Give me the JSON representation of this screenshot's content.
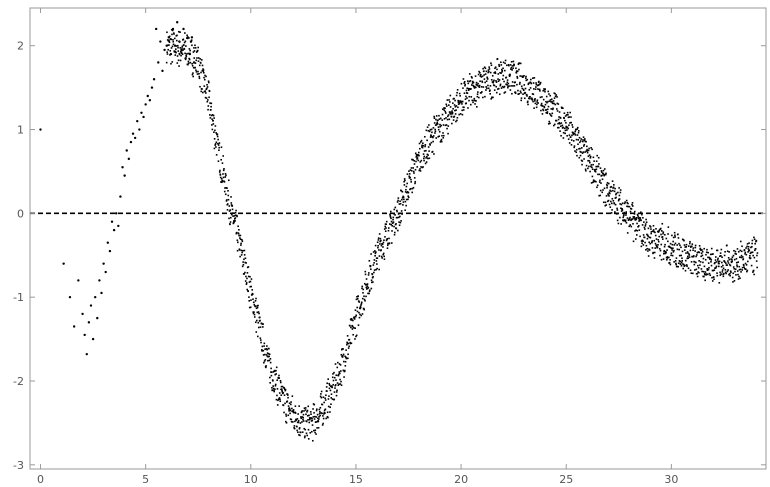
{
  "chart_data": {
    "type": "scatter",
    "title": "",
    "xlabel": "",
    "ylabel": "",
    "xlim": [
      -0.5,
      34.5
    ],
    "ylim": [
      -3.05,
      2.45
    ],
    "x_ticks": [
      0,
      5,
      10,
      15,
      20,
      25,
      30
    ],
    "x_tick_labels": [
      "0",
      "5",
      "10",
      "15",
      "20",
      "25",
      "30"
    ],
    "y_ticks": [
      -3,
      -2,
      -1,
      0,
      1,
      2
    ],
    "y_tick_labels": [
      "-3",
      "-2",
      "-1",
      "0",
      "1",
      "2"
    ],
    "grid": false,
    "legend": "none",
    "reference_line": {
      "y": 0,
      "style": "dashed"
    },
    "point_color": "#000000",
    "series": [
      {
        "values": [
          [
            0.0,
            1.0
          ],
          [
            1.1,
            -0.6
          ],
          [
            1.4,
            -1.0
          ],
          [
            1.6,
            -1.35
          ],
          [
            1.8,
            -0.8
          ],
          [
            2.0,
            -1.2
          ],
          [
            2.1,
            -1.45
          ],
          [
            2.2,
            -1.68
          ],
          [
            2.3,
            -1.3
          ],
          [
            2.4,
            -1.1
          ],
          [
            2.5,
            -1.5
          ],
          [
            2.6,
            -1.0
          ],
          [
            2.7,
            -1.25
          ],
          [
            2.8,
            -0.8
          ],
          [
            2.9,
            -0.95
          ],
          [
            3.0,
            -0.6
          ],
          [
            3.1,
            -0.7
          ],
          [
            3.2,
            -0.35
          ],
          [
            3.3,
            -0.45
          ],
          [
            3.4,
            -0.1
          ],
          [
            3.5,
            -0.2
          ],
          [
            3.6,
            0.0
          ],
          [
            3.7,
            -0.15
          ],
          [
            3.8,
            0.2
          ],
          [
            3.9,
            0.55
          ],
          [
            4.0,
            0.45
          ],
          [
            4.1,
            0.75
          ],
          [
            4.2,
            0.65
          ],
          [
            4.3,
            0.85
          ],
          [
            4.4,
            0.95
          ],
          [
            4.5,
            0.9
          ],
          [
            4.6,
            1.1
          ],
          [
            4.7,
            1.0
          ],
          [
            4.8,
            1.2
          ],
          [
            4.9,
            1.15
          ],
          [
            5.0,
            1.3
          ],
          [
            5.1,
            1.4
          ],
          [
            5.2,
            1.35
          ],
          [
            5.3,
            1.5
          ],
          [
            5.4,
            1.6
          ],
          [
            5.5,
            2.2
          ],
          [
            5.6,
            1.8
          ],
          [
            5.7,
            2.05
          ],
          [
            5.8,
            1.7
          ],
          [
            5.9,
            1.95
          ],
          [
            6.0,
            2.0
          ],
          [
            6.1,
            2.1
          ],
          [
            6.2,
            1.9
          ],
          [
            6.3,
            2.2
          ],
          [
            6.4,
            2.0
          ],
          [
            6.5,
            2.28
          ],
          [
            6.6,
            2.05
          ],
          [
            6.7,
            1.95
          ],
          [
            6.8,
            2.2
          ],
          [
            6.9,
            1.85
          ],
          [
            7.0,
            2.1
          ],
          [
            7.1,
            1.9
          ],
          [
            7.2,
            2.1
          ],
          [
            7.3,
            1.8
          ]
        ]
      }
    ],
    "band": {
      "x_start": 6.0,
      "x_end": 34.1,
      "trend": [
        [
          6.0,
          2.0
        ],
        [
          7.0,
          1.95
        ],
        [
          7.5,
          1.8
        ],
        [
          8.0,
          1.35
        ],
        [
          8.5,
          0.7
        ],
        [
          9.0,
          0.1
        ],
        [
          9.5,
          -0.4
        ],
        [
          10.0,
          -0.95
        ],
        [
          10.5,
          -1.45
        ],
        [
          11.0,
          -1.9
        ],
        [
          11.5,
          -2.2
        ],
        [
          12.0,
          -2.4
        ],
        [
          12.5,
          -2.5
        ],
        [
          13.0,
          -2.5
        ],
        [
          13.5,
          -2.3
        ],
        [
          14.0,
          -2.05
        ],
        [
          14.5,
          -1.7
        ],
        [
          15.0,
          -1.25
        ],
        [
          15.5,
          -0.85
        ],
        [
          16.0,
          -0.5
        ],
        [
          16.5,
          -0.25
        ],
        [
          17.0,
          0.0
        ],
        [
          17.5,
          0.35
        ],
        [
          18.0,
          0.65
        ],
        [
          19.0,
          1.05
        ],
        [
          20.0,
          1.35
        ],
        [
          21.0,
          1.55
        ],
        [
          22.0,
          1.65
        ],
        [
          23.0,
          1.55
        ],
        [
          24.0,
          1.35
        ],
        [
          25.0,
          1.05
        ],
        [
          26.0,
          0.65
        ],
        [
          27.0,
          0.25
        ],
        [
          28.0,
          -0.05
        ],
        [
          29.0,
          -0.3
        ],
        [
          30.0,
          -0.4
        ],
        [
          31.0,
          -0.55
        ],
        [
          32.0,
          -0.6
        ],
        [
          33.0,
          -0.6
        ],
        [
          34.0,
          -0.5
        ]
      ],
      "amplitude": 0.2
    }
  }
}
